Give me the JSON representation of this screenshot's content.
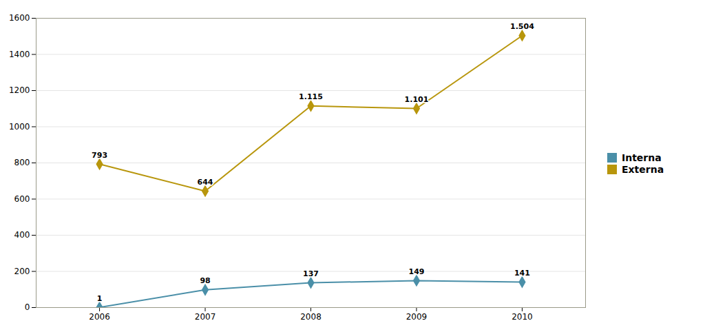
{
  "chart_data": {
    "type": "line",
    "x": [
      2006,
      2007,
      2008,
      2009,
      2010
    ],
    "series": [
      {
        "name": "Interna",
        "color": "#4a8fa8",
        "marker": "diamond",
        "values": [
          1,
          98,
          137,
          149,
          141
        ]
      },
      {
        "name": "Externa",
        "color": "#b8960c",
        "marker": "diamond",
        "values": [
          793,
          644,
          1115,
          1101,
          1504
        ],
        "value_labels": [
          "793",
          "644",
          "1.115",
          "1.101",
          "1.504"
        ]
      }
    ],
    "xlim": [
      2005.4,
      2010.6
    ],
    "xticks": [
      2006,
      2007,
      2008,
      2009,
      2010
    ],
    "ylim": [
      0,
      1600
    ],
    "yticks": [
      0,
      200,
      400,
      600,
      800,
      1000,
      1200,
      1400,
      1600
    ],
    "grid": true,
    "legend": "right",
    "data_labels": true
  }
}
